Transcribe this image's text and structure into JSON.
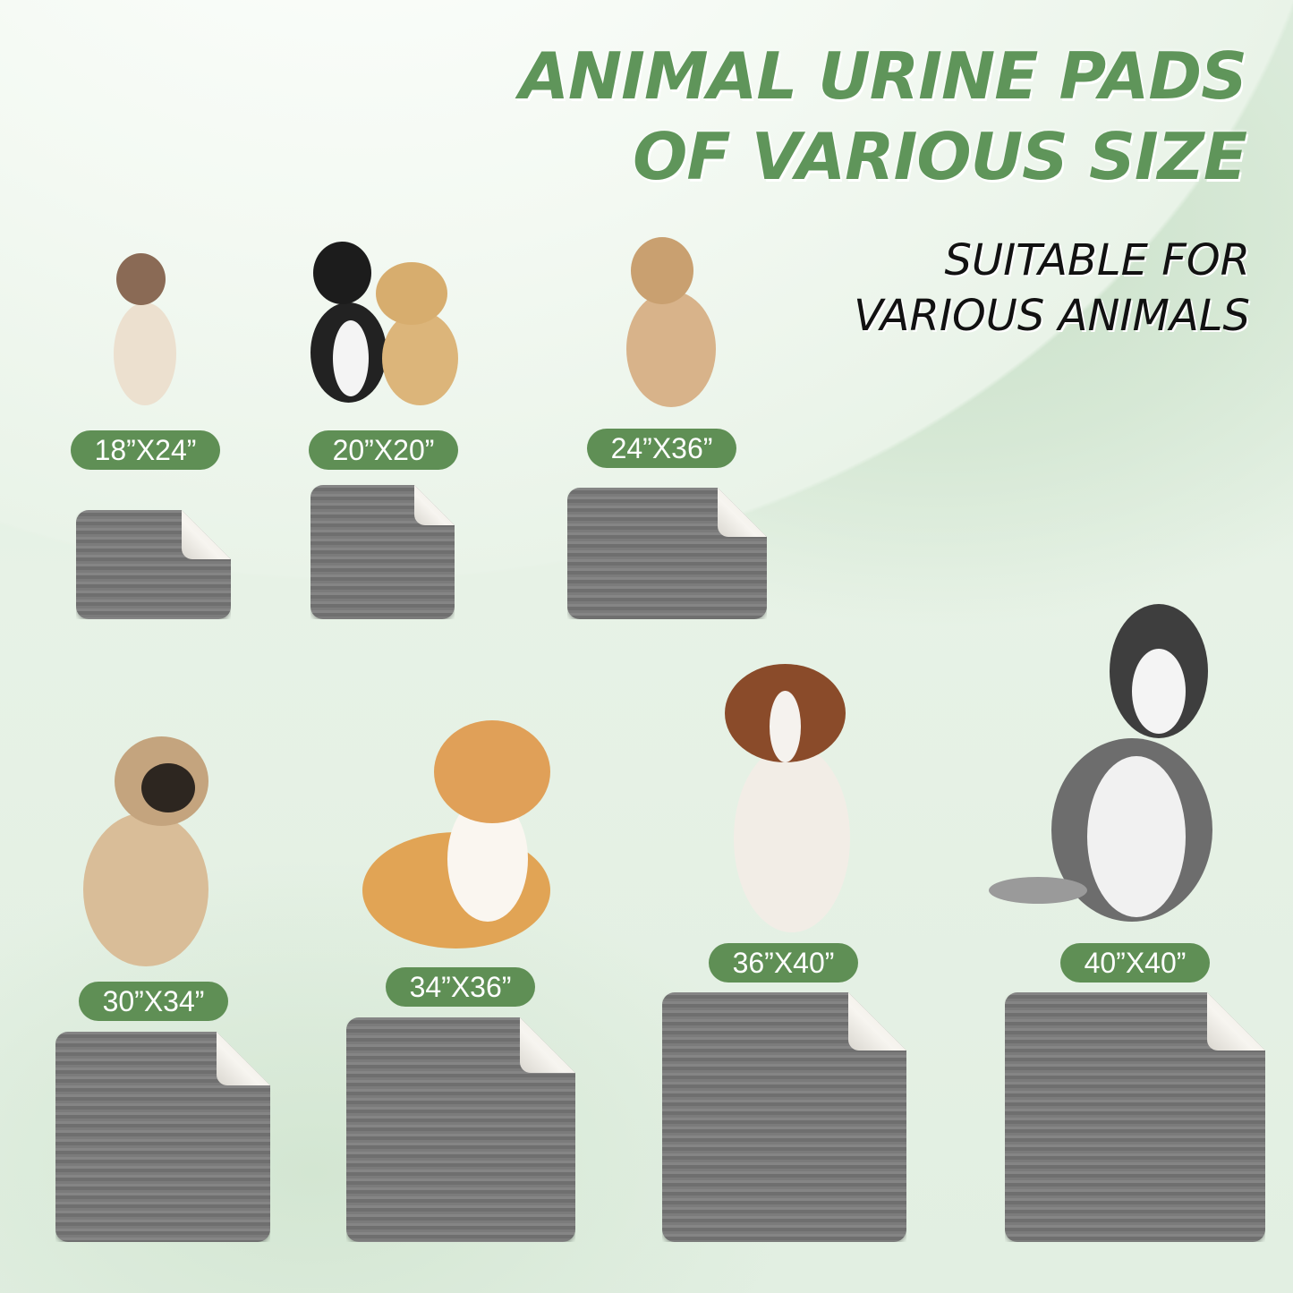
{
  "title": {
    "line1": "ANIMAL URINE PADS",
    "line2": "OF VARIOUS SIZE"
  },
  "subtitle": {
    "line1": "SUITABLE FOR",
    "line2": "VARIOUS ANIMALS"
  },
  "colors": {
    "label_bg": "#5f8f55",
    "title": "#5f955a",
    "pad": "#7a7a7a",
    "pad_back": "#f2f0ea"
  },
  "sizes": [
    {
      "label": "18”X24”",
      "animal": "siamese-cat"
    },
    {
      "label": "20”X20”",
      "animal": "cat-and-puppy"
    },
    {
      "label": "24”X36”",
      "animal": "tan-dog"
    },
    {
      "label": "30”X34”",
      "animal": "pug"
    },
    {
      "label": "34”X36”",
      "animal": "corgi"
    },
    {
      "label": "36”X40”",
      "animal": "australian-shepherd"
    },
    {
      "label": "40”X40”",
      "animal": "husky"
    }
  ]
}
